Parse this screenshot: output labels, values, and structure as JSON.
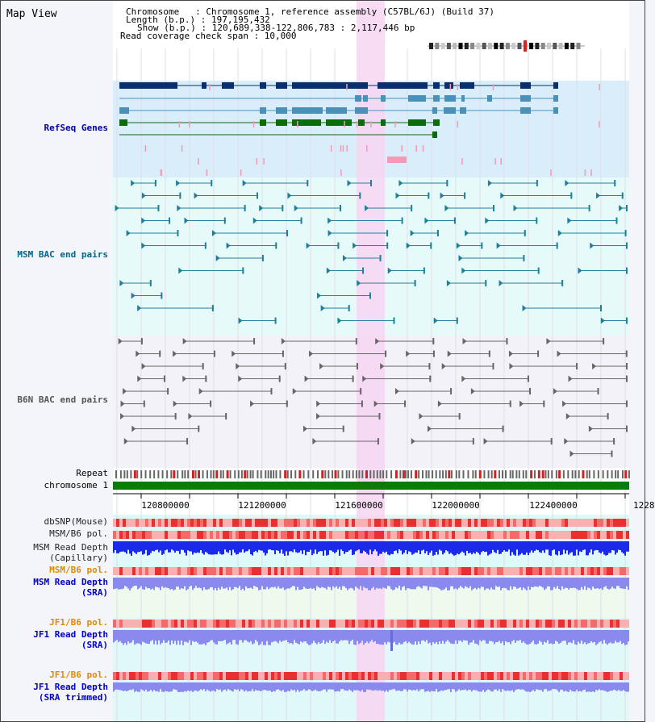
{
  "page": {
    "title": "Map View"
  },
  "info": {
    "chromosome": "Chromosome   : Chromosome 1, reference assembly (C57BL/6J) (Build 37)",
    "length": "Length (b.p.) : 197,195,432",
    "show": "Show (b.p.) : 120,689,338-122,806,783 : 2,117,446 bp",
    "coverage": "Read coverage check span : 10,000"
  },
  "tracks": {
    "refseq": {
      "label": "RefSeq Genes",
      "color": "#0000aa"
    },
    "msm_bac": {
      "label": "MSM BAC end pairs",
      "color": "#006688"
    },
    "b6n_bac": {
      "label": "B6N BAC end pairs",
      "color": "#555555"
    },
    "repeat": {
      "label": "Repeat"
    },
    "chromosome": {
      "label": "chromosome 1"
    },
    "dbsnp": {
      "label": "dbSNP(Mouse)"
    },
    "msm_b6_pol_1": {
      "label": "MSM/B6 pol."
    },
    "msm_depth_cap": {
      "line1": "MSM Read Depth",
      "line2": "(Capillary)"
    },
    "msm_b6_pol_2": {
      "label": "MSM/B6 pol.",
      "color": "#e08a00"
    },
    "msm_depth_sra": {
      "line1": "MSM Read Depth",
      "line2": "(SRA)",
      "color": "#0000cc"
    },
    "jf1_b6_pol_1": {
      "label": "JF1/B6 pol.",
      "color": "#e08a00"
    },
    "jf1_depth_sra": {
      "line1": "JF1 Read Depth",
      "line2": "(SRA)",
      "color": "#0000cc"
    },
    "jf1_b6_pol_2": {
      "label": "JF1/B6 pol.",
      "color": "#e08a00"
    },
    "jf1_depth_trim": {
      "line1": "JF1 Read Depth",
      "line2": "(SRA trimmed)",
      "color": "#0000cc"
    }
  },
  "axis": {
    "ticks": [
      "120800000",
      "121200000",
      "121600000",
      "122000000",
      "122400000",
      "1228"
    ]
  },
  "colors": {
    "refseq_bg": "#d9eefa",
    "bac_bg": "#e6fafa",
    "b6n_bg": "#f2f2f8",
    "highlight": "#f7d6f2",
    "gene_dark": "#0a2f6e",
    "gene_mid": "#4a90b8",
    "gene_green": "#0c6b0c",
    "pink": "#f39ab6",
    "repeat_gray": "#666666",
    "repeat_red": "#cc2222",
    "chrom_green": "#0c7a0c",
    "depth_blue": "#1a2ae8",
    "depth_light": "#8a8aee"
  }
}
